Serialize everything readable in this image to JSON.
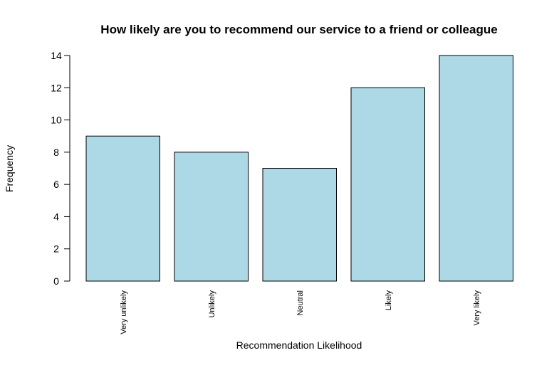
{
  "chart_data": {
    "type": "bar",
    "title": "How likely are you to recommend our service to a friend or colleague",
    "xlabel": "Recommendation Likelihood",
    "ylabel": "Frequency",
    "categories": [
      "Very unlikely",
      "Unlikely",
      "Neutral",
      "Likely",
      "Very likely"
    ],
    "values": [
      9,
      8,
      7,
      12,
      14
    ],
    "ylim": [
      0,
      14
    ],
    "yticks": [
      0,
      2,
      4,
      6,
      8,
      10,
      12,
      14
    ],
    "bar_color": "#ADD8E6",
    "border_color": "#000000",
    "grid": false,
    "legend": "none"
  }
}
